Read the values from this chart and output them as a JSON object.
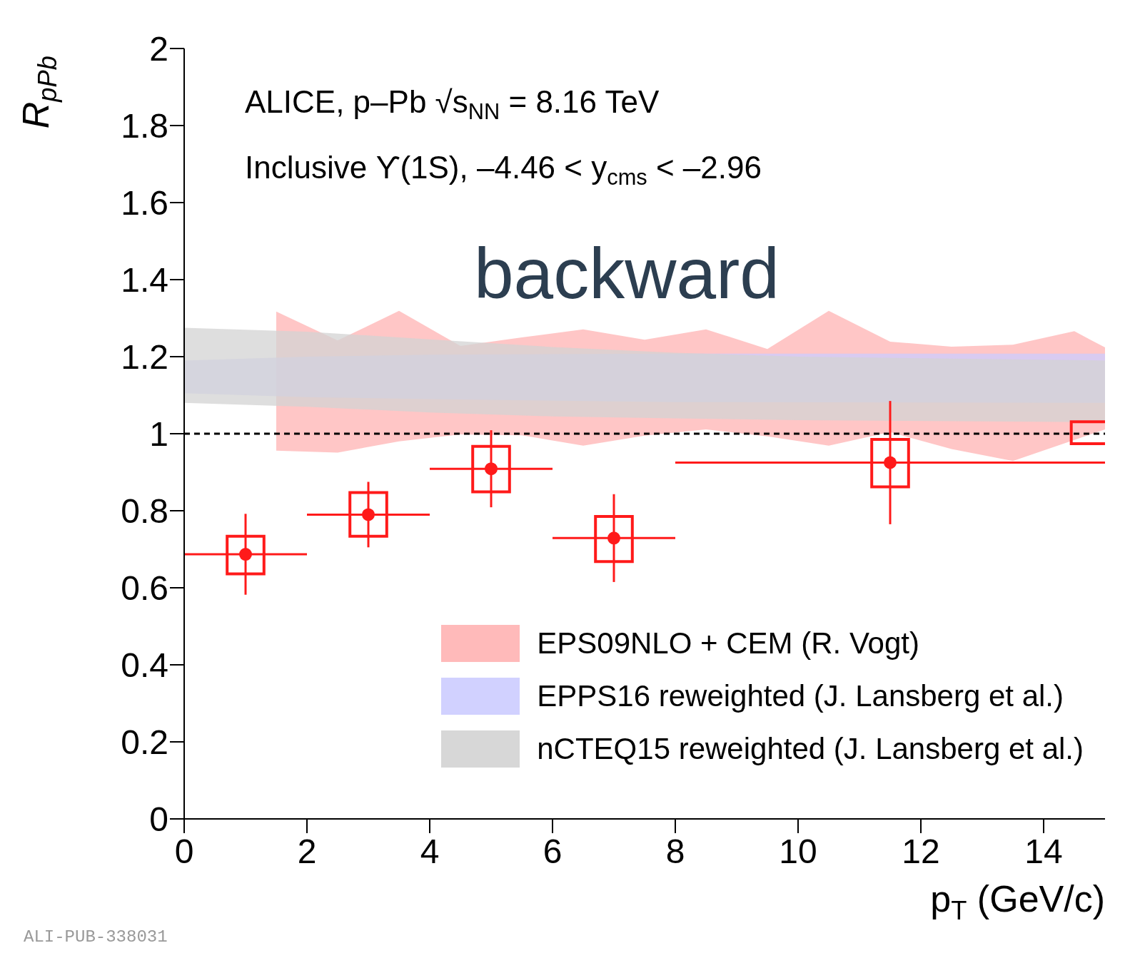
{
  "chart_data": {
    "type": "scatter",
    "xlabel": "p$_{T}$ (GeV/c)",
    "ylabel": "R$_{pPb}$",
    "annotations": [
      "ALICE, p–Pb √s$_{NN}$ = 8.16 TeV",
      "Inclusive ϒ(1S), –4.46 < y$_{cms}$ < –2.96",
      "backward",
      "ALI-PUB-338031"
    ],
    "xlim": [
      0,
      15
    ],
    "xticks": [
      0,
      2,
      4,
      6,
      8,
      10,
      12,
      14
    ],
    "ylim": [
      0,
      2
    ],
    "yticks": [
      0,
      0.2,
      0.4,
      0.6,
      0.8,
      1,
      1.2,
      1.4,
      1.6,
      1.8,
      2
    ],
    "legend": "bottom right",
    "marker": "circle",
    "ref_lines": [
      {
        "axis": "y",
        "value": 1,
        "color": "#000000",
        "line_style": "dashed"
      }
    ],
    "series": [
      {
        "type": "area",
        "name": "EPS09NLO + CEM (R. Vogt)",
        "color": "#ffb3b3",
        "x": [
          1.5,
          2.5,
          3.5,
          4.5,
          5.5,
          6.5,
          7.5,
          8.5,
          9.5,
          10.5,
          11.5,
          12.5,
          13.5,
          14.5,
          15
        ],
        "values": [
          null,
          null,
          null,
          null,
          null,
          null,
          null,
          null,
          null,
          null,
          null,
          null,
          null,
          null,
          null
        ],
        "lower": [
          0.956,
          0.951,
          0.98,
          0.998,
          0.996,
          0.969,
          0.995,
          1.011,
          0.993,
          0.969,
          1.004,
          0.96,
          0.929,
          0.984,
          1.011
        ],
        "upper": [
          1.317,
          1.242,
          1.319,
          1.228,
          1.25,
          1.271,
          1.244,
          1.271,
          1.22,
          1.319,
          1.239,
          1.226,
          1.231,
          1.266,
          1.224
        ]
      },
      {
        "type": "area",
        "name": "EPPS16 reweighted (J. Lansberg et al.)",
        "color": "#ccccff",
        "x": [
          0,
          2,
          4,
          8,
          15
        ],
        "values": [
          null,
          null,
          null,
          null,
          null
        ],
        "lower": [
          1.105,
          1.095,
          1.09,
          1.082,
          1.08
        ],
        "upper": [
          1.19,
          1.2,
          1.205,
          1.208,
          1.208
        ]
      },
      {
        "type": "area",
        "name": "nCTEQ15 reweighted (J. Lansberg et al.)",
        "color": "#d3d3d3",
        "x": [
          0,
          2,
          4,
          6,
          8,
          10,
          15
        ],
        "values": [
          null,
          null,
          null,
          null,
          null,
          null,
          null
        ],
        "lower": [
          1.08,
          1.07,
          1.055,
          1.045,
          1.04,
          1.035,
          1.03
        ],
        "upper": [
          1.275,
          1.265,
          1.245,
          1.225,
          1.21,
          1.2,
          1.19
        ]
      },
      {
        "type": "bar",
        "color": "#ff1a1a",
        "x": [
          1,
          3,
          5,
          7,
          11.5
        ],
        "base": [
          0.636,
          0.734,
          0.849,
          0.668,
          0.862
        ],
        "values": [
          0.098,
          0.113,
          0.118,
          0.117,
          0.123
        ]
      },
      {
        "type": "bar",
        "color": "#ff1a1a",
        "x": [
          14.75
        ],
        "base": [
          0.974
        ],
        "values": [
          0.057
        ]
      },
      {
        "color": "#ff1a1a",
        "x": [
          1,
          3,
          5,
          7,
          11.5
        ],
        "values": [
          0.687,
          0.79,
          0.909,
          0.729,
          0.925
        ],
        "errors": [
          0.105,
          0.085,
          0.1,
          0.114,
          0.16
        ],
        "xerrors": [
          1,
          1,
          1,
          1,
          3.5
        ]
      }
    ]
  }
}
